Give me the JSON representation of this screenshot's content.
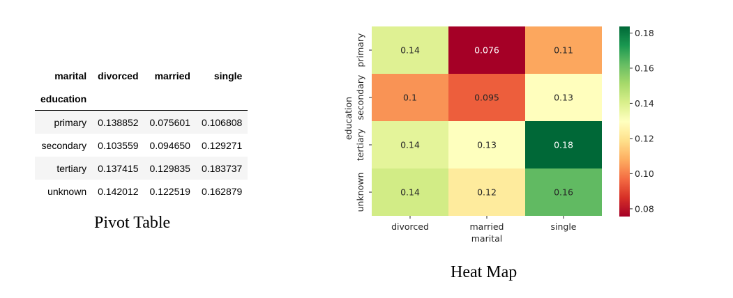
{
  "pivot": {
    "columns_name": "marital",
    "index_name": "education",
    "columns": [
      "divorced",
      "married",
      "single"
    ],
    "rows": [
      {
        "label": "primary",
        "values": [
          "0.138852",
          "0.075601",
          "0.106808"
        ]
      },
      {
        "label": "secondary",
        "values": [
          "0.103559",
          "0.094650",
          "0.129271"
        ]
      },
      {
        "label": "tertiary",
        "values": [
          "0.137415",
          "0.129835",
          "0.183737"
        ]
      },
      {
        "label": "unknown",
        "values": [
          "0.142012",
          "0.122519",
          "0.162879"
        ]
      }
    ],
    "caption": "Pivot Table"
  },
  "chart_data": {
    "type": "heatmap",
    "x_categories": [
      "divorced",
      "married",
      "single"
    ],
    "y_categories": [
      "primary",
      "secondary",
      "tertiary",
      "unknown"
    ],
    "values": [
      [
        0.138852,
        0.075601,
        0.106808
      ],
      [
        0.103559,
        0.09465,
        0.129271
      ],
      [
        0.137415,
        0.129835,
        0.183737
      ],
      [
        0.142012,
        0.122519,
        0.162879
      ]
    ],
    "annotations": [
      [
        "0.14",
        "0.076",
        "0.11"
      ],
      [
        "0.1",
        "0.095",
        "0.13"
      ],
      [
        "0.14",
        "0.13",
        "0.18"
      ],
      [
        "0.14",
        "0.12",
        "0.16"
      ]
    ],
    "xlabel": "marital",
    "ylabel": "education",
    "colormap": "RdYlGn",
    "vmin": 0.075601,
    "vmax": 0.183737,
    "colorbar_ticks": [
      0.08,
      0.1,
      0.12,
      0.14,
      0.16,
      0.18
    ],
    "colorbar_tick_labels": [
      "0.08",
      "0.10",
      "0.12",
      "0.14",
      "0.16",
      "0.18"
    ],
    "caption": "Heat Map"
  }
}
